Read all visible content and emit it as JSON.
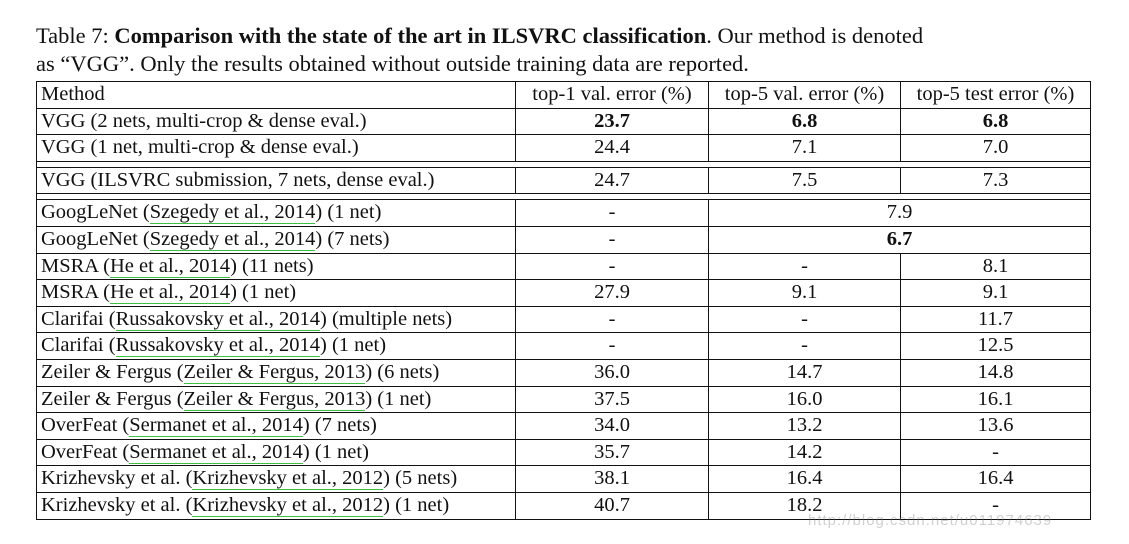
{
  "caption": {
    "prefix": "Table 7: ",
    "bold": "Comparison with the state of the art in ILSVRC classification",
    "rest1": ". Our method is denoted",
    "line2": "as “VGG”. Only the results obtained without outside training data are reported."
  },
  "headers": [
    "Method",
    "top-1 val. error (%)",
    "top-5 val. error (%)",
    "top-5 test error (%)"
  ],
  "rows": [
    {
      "pre": "VGG (2 nets, multi-crop & dense eval.)",
      "cite": "",
      "post": "",
      "top1": "23.7",
      "top5val": "6.8",
      "top5test": "6.8",
      "bold": true
    },
    {
      "pre": "VGG (1 net, multi-crop & dense eval.)",
      "cite": "",
      "post": "",
      "top1": "24.4",
      "top5val": "7.1",
      "top5test": "7.0"
    },
    {
      "pre": "VGG (ILSVRC submission, 7 nets, dense eval.)",
      "cite": "",
      "post": "",
      "top1": "24.7",
      "top5val": "7.5",
      "top5test": "7.3"
    },
    {
      "pre": "GoogLeNet (",
      "cite": "Szegedy et al., 2014",
      "post": ") (1 net)",
      "top1": "-",
      "merged": "7.9"
    },
    {
      "pre": "GoogLeNet (",
      "cite": "Szegedy et al., 2014",
      "post": ") (7 nets)",
      "top1": "-",
      "merged": "6.7",
      "mergedBold": true
    },
    {
      "pre": "MSRA (",
      "cite": "He et al., 2014",
      "post": ") (11 nets)",
      "top1": "-",
      "top5val": "-",
      "top5test": "8.1"
    },
    {
      "pre": "MSRA (",
      "cite": "He et al., 2014",
      "post": ") (1 net)",
      "top1": "27.9",
      "top5val": "9.1",
      "top5test": "9.1"
    },
    {
      "pre": "Clarifai (",
      "cite": "Russakovsky et al., 2014",
      "post": ") (multiple nets)",
      "top1": "-",
      "top5val": "-",
      "top5test": "11.7"
    },
    {
      "pre": "Clarifai (",
      "cite": "Russakovsky et al., 2014",
      "post": ") (1 net)",
      "top1": "-",
      "top5val": "-",
      "top5test": "12.5"
    },
    {
      "pre": "Zeiler & Fergus (",
      "cite": "Zeiler & Fergus, 2013",
      "post": ") (6 nets)",
      "top1": "36.0",
      "top5val": "14.7",
      "top5test": "14.8"
    },
    {
      "pre": "Zeiler & Fergus (",
      "cite": "Zeiler & Fergus, 2013",
      "post": ") (1 net)",
      "top1": "37.5",
      "top5val": "16.0",
      "top5test": "16.1"
    },
    {
      "pre": "OverFeat (",
      "cite": "Sermanet et al., 2014",
      "post": ") (7 nets)",
      "top1": "34.0",
      "top5val": "13.2",
      "top5test": "13.6"
    },
    {
      "pre": "OverFeat (",
      "cite": "Sermanet et al., 2014",
      "post": ") (1 net)",
      "top1": "35.7",
      "top5val": "14.2",
      "top5test": "-"
    },
    {
      "pre": "Krizhevsky et al. (",
      "cite": "Krizhevsky et al., 2012",
      "post": ") (5 nets)",
      "top1": "38.1",
      "top5val": "16.4",
      "top5test": "16.4"
    },
    {
      "pre": "Krizhevsky et al. (",
      "cite": "Krizhevsky et al., 2012",
      "post": ") (1 net)",
      "top1": "40.7",
      "top5val": "18.2",
      "top5test": "-"
    }
  ],
  "watermark": "http://blog.csdn.net/u011974639"
}
